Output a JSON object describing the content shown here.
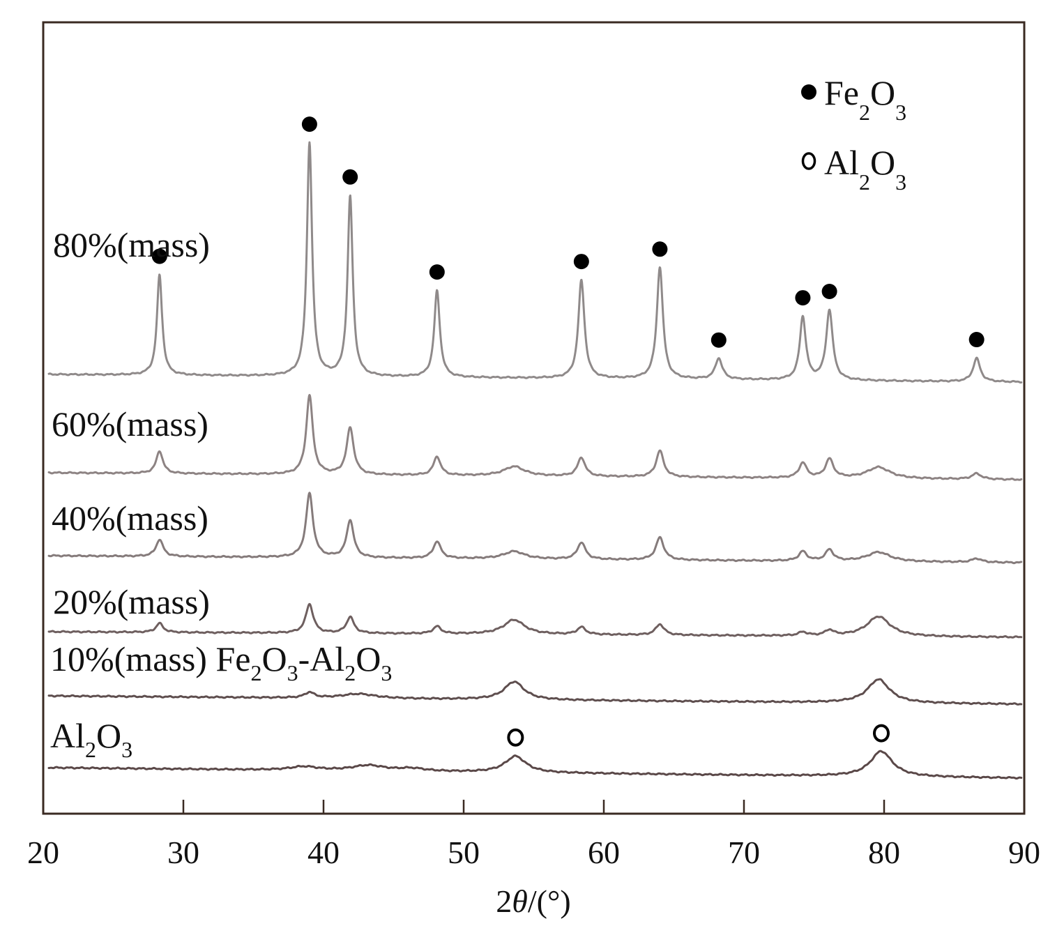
{
  "chart_data": {
    "type": "line",
    "title": "",
    "xlabel_prefix": "2",
    "xlabel_theta": "θ",
    "xlabel_suffix": "/(°)",
    "xlim": [
      20,
      90
    ],
    "xticks": [
      "20",
      "30",
      "40",
      "50",
      "60",
      "70",
      "80",
      "90"
    ],
    "y_axis": "offset intensity (a.u.), no tick labels",
    "legend": {
      "position": "top-right",
      "entries": [
        {
          "marker": "filled-circle",
          "main": "Fe",
          "sub1": "2",
          "mid": "O",
          "sub2": "3",
          "phase": "Fe2O3"
        },
        {
          "marker": "open-circle",
          "main": "Al",
          "sub1": "2",
          "mid": "O",
          "sub2": "3",
          "phase": "Al2O3"
        }
      ]
    },
    "series": [
      {
        "name": "80%(mass)",
        "label": "80%(mass)",
        "color": "#8f8a8a",
        "baseline": 0.0,
        "peaks": [
          {
            "x": 28.3,
            "height": 0.43,
            "width": 0.22
          },
          {
            "x": 39.0,
            "height": 1.0,
            "width": 0.22
          },
          {
            "x": 41.9,
            "height": 0.77,
            "width": 0.22
          },
          {
            "x": 48.1,
            "height": 0.37,
            "width": 0.24
          },
          {
            "x": 58.4,
            "height": 0.42,
            "width": 0.26
          },
          {
            "x": 64.0,
            "height": 0.48,
            "width": 0.26
          },
          {
            "x": 68.2,
            "height": 0.09,
            "width": 0.3
          },
          {
            "x": 74.2,
            "height": 0.27,
            "width": 0.26
          },
          {
            "x": 76.1,
            "height": 0.3,
            "width": 0.28
          },
          {
            "x": 86.6,
            "height": 0.1,
            "width": 0.3
          }
        ]
      },
      {
        "name": "60%(mass)",
        "label": "60%(mass)",
        "color": "#8d8383",
        "peaks": [
          {
            "x": 28.3,
            "height": 0.12,
            "width": 0.28
          },
          {
            "x": 39.0,
            "height": 0.42,
            "width": 0.28
          },
          {
            "x": 41.9,
            "height": 0.25,
            "width": 0.3
          },
          {
            "x": 48.1,
            "height": 0.1,
            "width": 0.3
          },
          {
            "x": 53.6,
            "height": 0.05,
            "width": 0.9
          },
          {
            "x": 58.4,
            "height": 0.1,
            "width": 0.32
          },
          {
            "x": 64.0,
            "height": 0.14,
            "width": 0.32
          },
          {
            "x": 74.2,
            "height": 0.08,
            "width": 0.32
          },
          {
            "x": 76.1,
            "height": 0.1,
            "width": 0.34
          },
          {
            "x": 79.6,
            "height": 0.06,
            "width": 1.0
          },
          {
            "x": 86.6,
            "height": 0.03,
            "width": 0.4
          }
        ]
      },
      {
        "name": "40%(mass)",
        "label": "40%(mass)",
        "color": "#857b7b",
        "peaks": [
          {
            "x": 28.3,
            "height": 0.09,
            "width": 0.3
          },
          {
            "x": 39.0,
            "height": 0.34,
            "width": 0.3
          },
          {
            "x": 41.9,
            "height": 0.2,
            "width": 0.3
          },
          {
            "x": 48.1,
            "height": 0.09,
            "width": 0.32
          },
          {
            "x": 53.6,
            "height": 0.04,
            "width": 0.9
          },
          {
            "x": 58.4,
            "height": 0.09,
            "width": 0.34
          },
          {
            "x": 64.0,
            "height": 0.12,
            "width": 0.34
          },
          {
            "x": 74.2,
            "height": 0.05,
            "width": 0.34
          },
          {
            "x": 76.1,
            "height": 0.06,
            "width": 0.34
          },
          {
            "x": 79.6,
            "height": 0.05,
            "width": 1.0
          },
          {
            "x": 86.6,
            "height": 0.02,
            "width": 0.4
          }
        ]
      },
      {
        "name": "20%(mass)",
        "label": "20%(mass)",
        "color": "#6e5f5f",
        "peaks": [
          {
            "x": 28.3,
            "height": 0.05,
            "width": 0.3
          },
          {
            "x": 39.0,
            "height": 0.16,
            "width": 0.32
          },
          {
            "x": 41.9,
            "height": 0.09,
            "width": 0.32
          },
          {
            "x": 48.1,
            "height": 0.04,
            "width": 0.34
          },
          {
            "x": 53.6,
            "height": 0.08,
            "width": 0.9
          },
          {
            "x": 58.4,
            "height": 0.04,
            "width": 0.36
          },
          {
            "x": 64.0,
            "height": 0.06,
            "width": 0.36
          },
          {
            "x": 74.2,
            "height": 0.02,
            "width": 0.36
          },
          {
            "x": 76.1,
            "height": 0.03,
            "width": 0.36
          },
          {
            "x": 79.6,
            "height": 0.11,
            "width": 1.0
          }
        ]
      },
      {
        "name": "10%(mass) Fe2O3-Al2O3",
        "label_main": "10%(mass) Fe",
        "label_sub1": "2",
        "label_mid": "O",
        "label_sub2": "3",
        "label_mid2": "-Al",
        "label_sub3": "2",
        "label_mid3": "O",
        "label_sub4": "3",
        "color": "#5e4e4e",
        "peaks": [
          {
            "x": 39.0,
            "height": 0.03,
            "width": 0.4
          },
          {
            "x": 42.5,
            "height": 0.025,
            "width": 1.5
          },
          {
            "x": 53.6,
            "height": 0.1,
            "width": 0.85
          },
          {
            "x": 79.6,
            "height": 0.13,
            "width": 0.95
          }
        ]
      },
      {
        "name": "Al2O3",
        "label_main": "Al",
        "label_sub1": "2",
        "label_mid": "O",
        "label_sub2": "3",
        "color": "#5a4848",
        "peaks": [
          {
            "x": 38.6,
            "height": 0.02,
            "width": 1.2
          },
          {
            "x": 43.2,
            "height": 0.03,
            "width": 1.4
          },
          {
            "x": 46.3,
            "height": 0.015,
            "width": 1.2
          },
          {
            "x": 53.7,
            "height": 0.09,
            "width": 0.9
          },
          {
            "x": 79.8,
            "height": 0.14,
            "width": 0.95
          }
        ]
      }
    ],
    "markers": [
      {
        "series": "80%(mass)",
        "phase": "Fe2O3",
        "style": "filled",
        "x": [
          28.3,
          39.0,
          41.9,
          48.1,
          58.4,
          64.0,
          68.2,
          74.2,
          76.1,
          86.6
        ]
      },
      {
        "series": "Al2O3",
        "phase": "Al2O3",
        "style": "open",
        "x": [
          53.7,
          79.8
        ]
      }
    ]
  }
}
